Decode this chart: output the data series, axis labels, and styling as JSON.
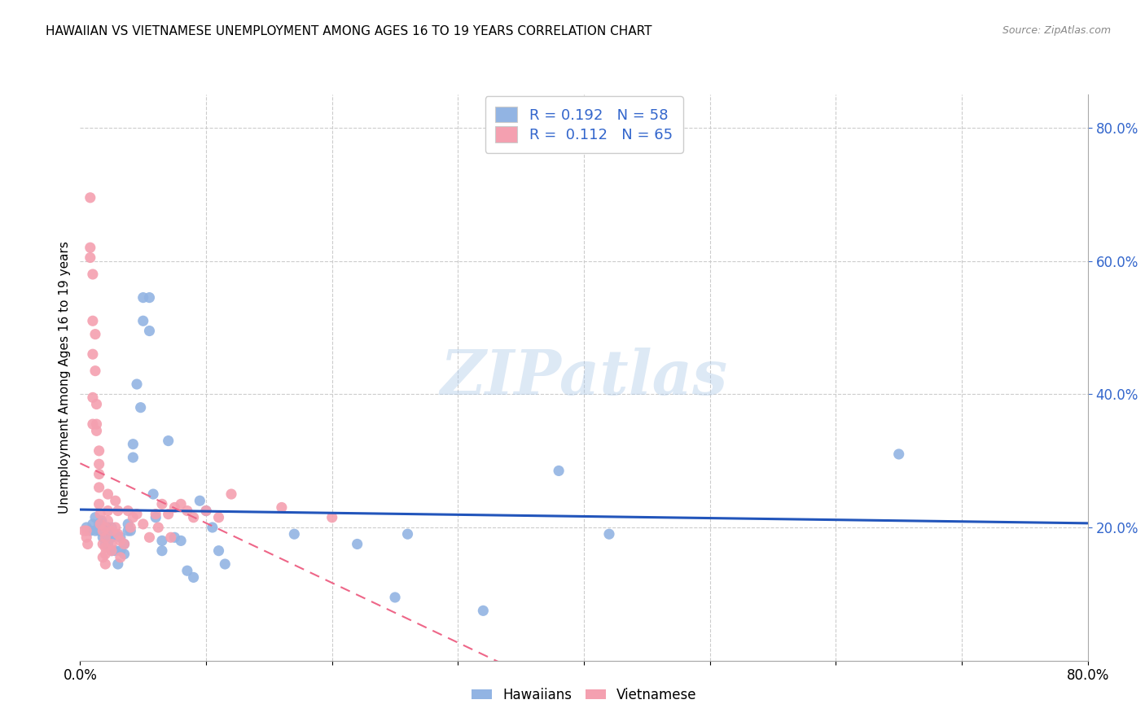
{
  "title": "HAWAIIAN VS VIETNAMESE UNEMPLOYMENT AMONG AGES 16 TO 19 YEARS CORRELATION CHART",
  "source": "Source: ZipAtlas.com",
  "ylabel": "Unemployment Among Ages 16 to 19 years",
  "xlim": [
    0.0,
    0.8
  ],
  "ylim": [
    0.0,
    0.85
  ],
  "y_ticks_right": [
    0.2,
    0.4,
    0.6,
    0.8
  ],
  "y_tick_labels_right": [
    "20.0%",
    "40.0%",
    "60.0%",
    "80.0%"
  ],
  "hawaiian_R": 0.192,
  "hawaiian_N": 58,
  "vietnamese_R": 0.112,
  "vietnamese_N": 65,
  "hawaiian_color": "#92B4E3",
  "vietnamese_color": "#F4A0B0",
  "hawaiian_line_color": "#2255BB",
  "vietnamese_line_color": "#EE6688",
  "watermark": "ZIPatlas",
  "hawaiian_x": [
    0.005,
    0.008,
    0.01,
    0.012,
    0.012,
    0.015,
    0.015,
    0.017,
    0.017,
    0.018,
    0.02,
    0.02,
    0.022,
    0.022,
    0.022,
    0.025,
    0.025,
    0.025,
    0.028,
    0.028,
    0.03,
    0.032,
    0.032,
    0.035,
    0.035,
    0.038,
    0.038,
    0.04,
    0.042,
    0.042,
    0.045,
    0.048,
    0.05,
    0.05,
    0.055,
    0.055,
    0.058,
    0.06,
    0.065,
    0.065,
    0.07,
    0.075,
    0.08,
    0.085,
    0.09,
    0.095,
    0.1,
    0.105,
    0.11,
    0.115,
    0.17,
    0.22,
    0.25,
    0.26,
    0.32,
    0.38,
    0.42,
    0.65
  ],
  "hawaiian_y": [
    0.2,
    0.195,
    0.205,
    0.195,
    0.215,
    0.205,
    0.195,
    0.21,
    0.195,
    0.185,
    0.175,
    0.195,
    0.2,
    0.185,
    0.175,
    0.2,
    0.185,
    0.165,
    0.19,
    0.165,
    0.145,
    0.185,
    0.165,
    0.175,
    0.16,
    0.205,
    0.195,
    0.195,
    0.325,
    0.305,
    0.415,
    0.38,
    0.545,
    0.51,
    0.545,
    0.495,
    0.25,
    0.215,
    0.18,
    0.165,
    0.33,
    0.185,
    0.18,
    0.135,
    0.125,
    0.24,
    0.225,
    0.2,
    0.165,
    0.145,
    0.19,
    0.175,
    0.095,
    0.19,
    0.075,
    0.285,
    0.19,
    0.31
  ],
  "vietnamese_x": [
    0.003,
    0.005,
    0.005,
    0.006,
    0.008,
    0.008,
    0.008,
    0.01,
    0.01,
    0.01,
    0.01,
    0.01,
    0.012,
    0.012,
    0.013,
    0.013,
    0.013,
    0.015,
    0.015,
    0.015,
    0.015,
    0.015,
    0.016,
    0.016,
    0.018,
    0.018,
    0.018,
    0.02,
    0.02,
    0.02,
    0.02,
    0.02,
    0.022,
    0.022,
    0.022,
    0.025,
    0.025,
    0.025,
    0.028,
    0.028,
    0.03,
    0.03,
    0.032,
    0.032,
    0.035,
    0.038,
    0.04,
    0.042,
    0.045,
    0.05,
    0.055,
    0.06,
    0.062,
    0.065,
    0.07,
    0.072,
    0.075,
    0.08,
    0.085,
    0.09,
    0.1,
    0.11,
    0.12,
    0.16,
    0.2
  ],
  "vietnamese_y": [
    0.195,
    0.195,
    0.185,
    0.175,
    0.695,
    0.62,
    0.605,
    0.58,
    0.51,
    0.46,
    0.395,
    0.355,
    0.49,
    0.435,
    0.385,
    0.355,
    0.345,
    0.315,
    0.295,
    0.28,
    0.26,
    0.235,
    0.22,
    0.205,
    0.195,
    0.175,
    0.155,
    0.2,
    0.185,
    0.17,
    0.16,
    0.145,
    0.25,
    0.225,
    0.21,
    0.195,
    0.175,
    0.165,
    0.24,
    0.2,
    0.225,
    0.19,
    0.18,
    0.155,
    0.175,
    0.225,
    0.2,
    0.215,
    0.22,
    0.205,
    0.185,
    0.22,
    0.2,
    0.235,
    0.22,
    0.185,
    0.23,
    0.235,
    0.225,
    0.215,
    0.225,
    0.215,
    0.25,
    0.23,
    0.215
  ]
}
